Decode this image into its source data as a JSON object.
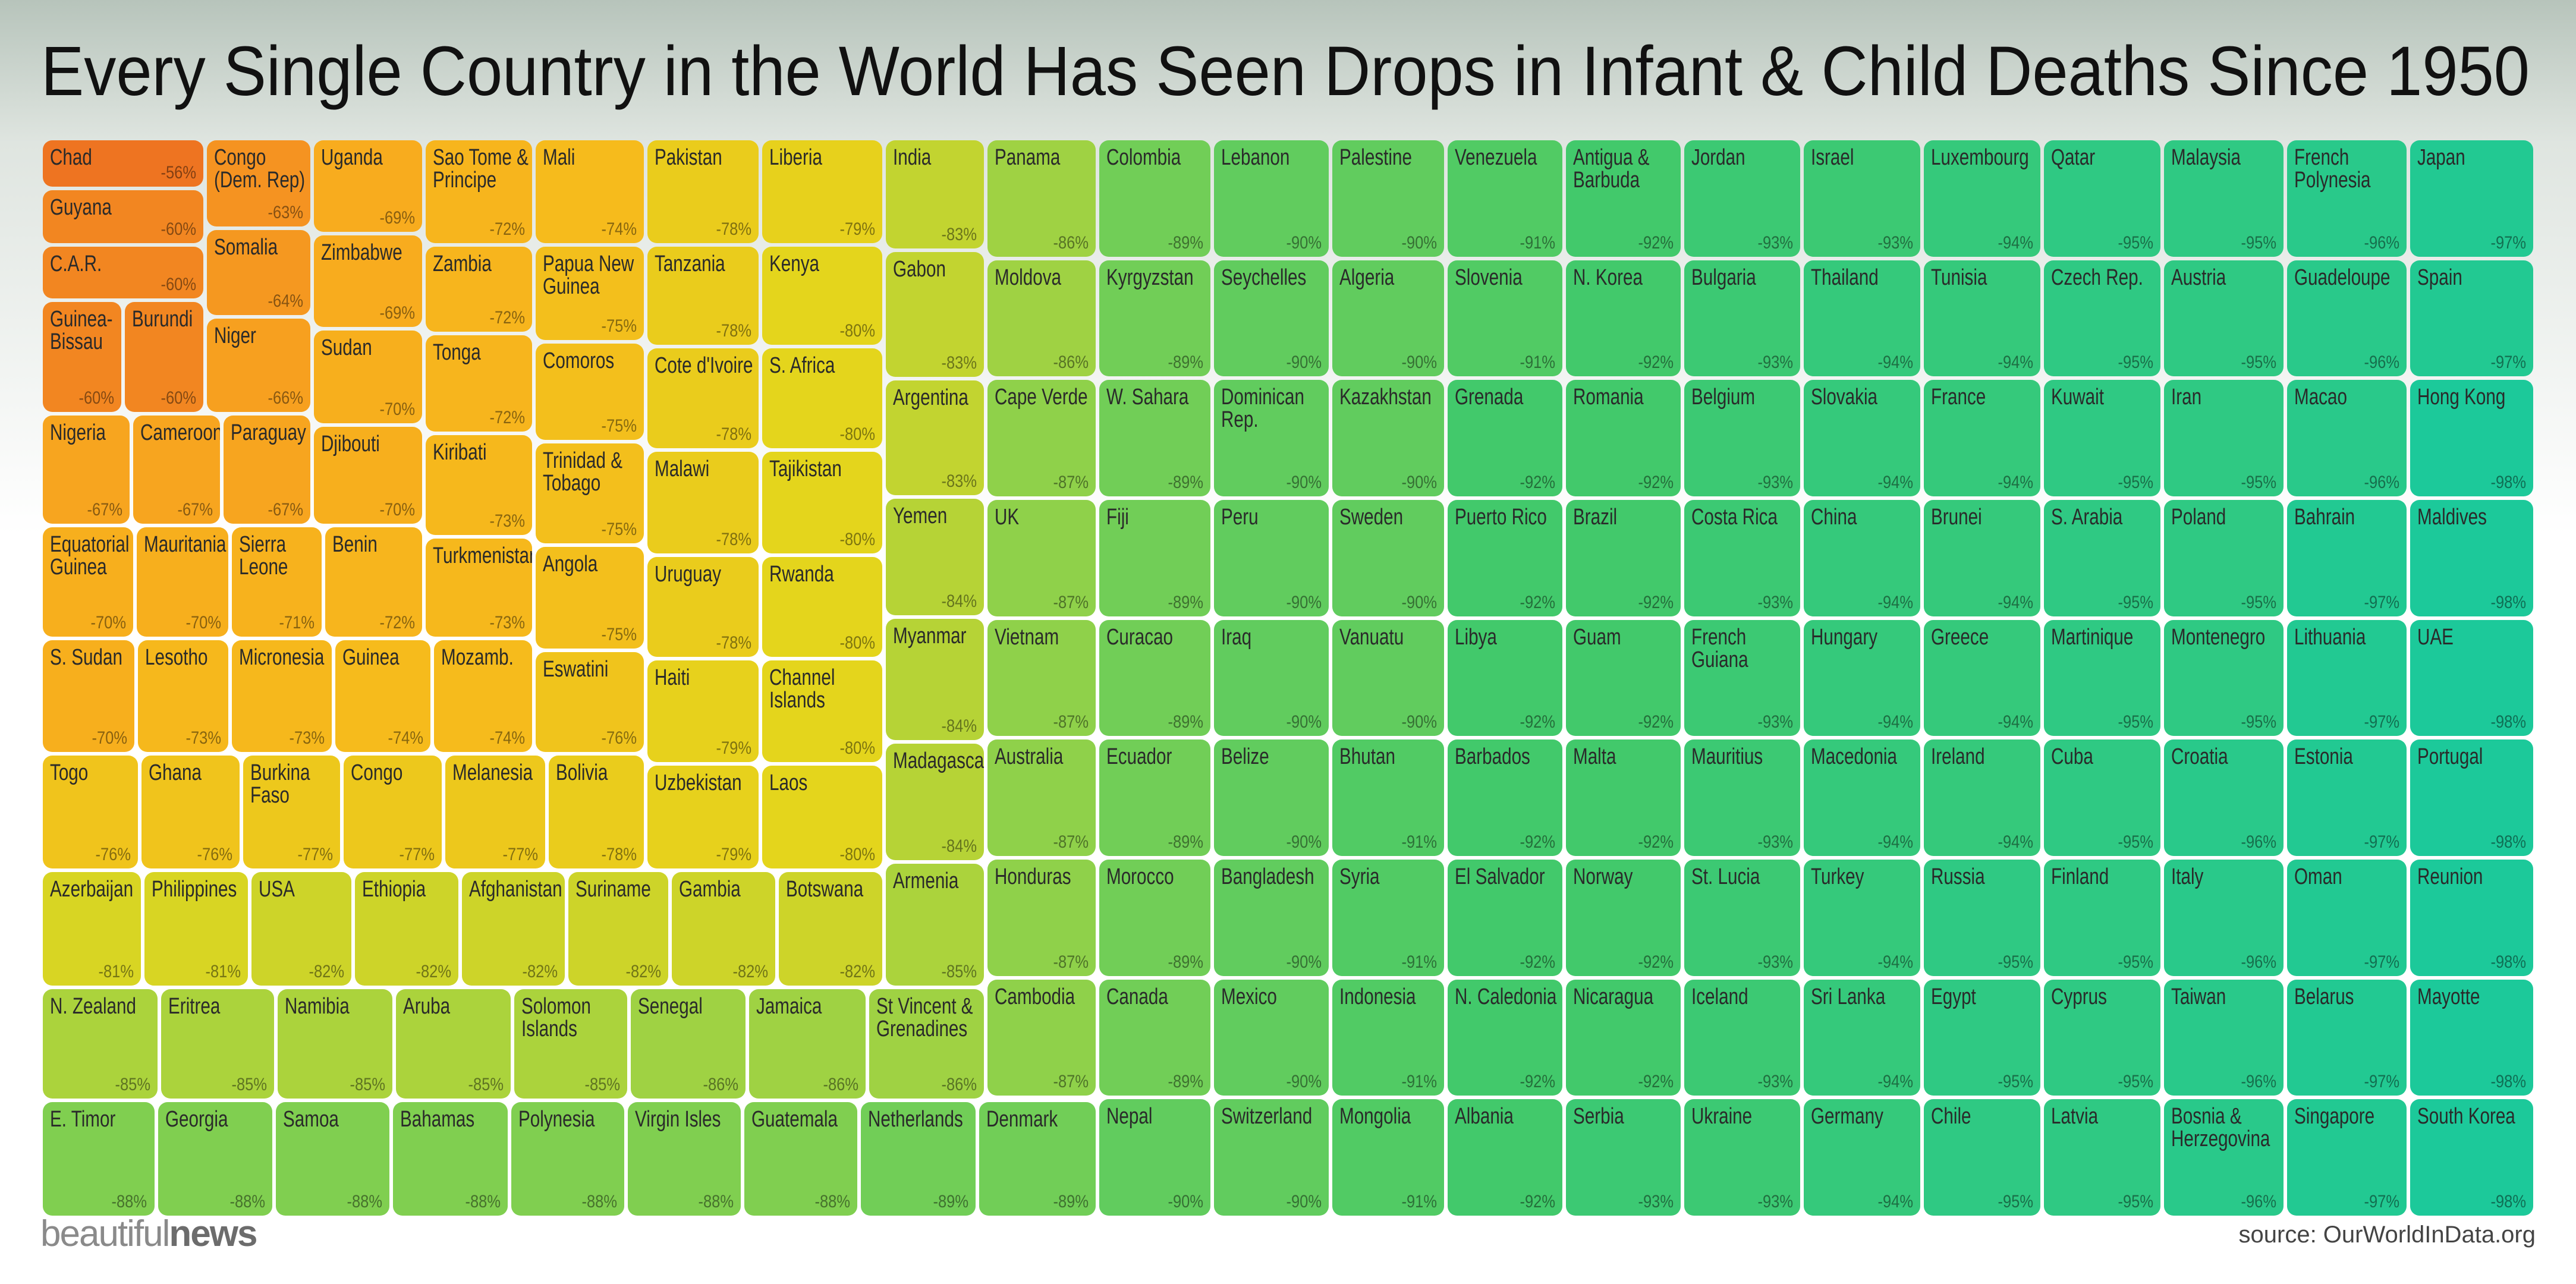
{
  "chart_data": {
    "type": "treemap",
    "title": "Every Single Country in the World Has Seen Drops in Infant & Child Deaths Since 1950",
    "logo": [
      "beautiful",
      "news"
    ],
    "source": "source: OurWorldInData.org",
    "colors": [
      "#ee7421",
      "#f48f21",
      "#f8a91e",
      "#f6bb1c",
      "#e4d51c",
      "#9fd243",
      "#42c96b",
      "#1cc99a"
    ],
    "categories": [
      "Chad",
      "Guyana",
      "C.A.R.",
      "Guinea-Bissau",
      "Burundi",
      "Congo (Dem. Rep)",
      "Somalia",
      "Niger",
      "Uganda",
      "Zimbabwe",
      "Sudan",
      "Djibouti",
      "Nigeria",
      "Cameroon",
      "Paraguay",
      "Sao Tome & Principe",
      "Zambia",
      "Tonga",
      "Kiribati",
      "Turkmenistan",
      "Mali",
      "Papua New Guinea",
      "Comoros",
      "Trinidad & Tobago",
      "Angola",
      "Equatorial Guinea",
      "Mauritania",
      "Sierra Leone",
      "Benin",
      "S. Sudan",
      "Lesotho",
      "Micronesia",
      "Guinea",
      "Mozamb.",
      "Eswatini",
      "Togo",
      "Ghana",
      "Burkina Faso",
      "Congo",
      "Melanesia",
      "Bolivia",
      "Pakistan",
      "Tanzania",
      "Cote d'Ivoire",
      "Malawi",
      "Uruguay",
      "Haiti",
      "Uzbekistan",
      "Liberia",
      "Kenya",
      "S. Africa",
      "Tajikistan",
      "Rwanda",
      "Channel Islands",
      "Laos",
      "India",
      "Gabon",
      "Argentina",
      "Yemen",
      "Myanmar",
      "Madagascar",
      "Armenia",
      "Azerbaijan",
      "Philippines",
      "USA",
      "Ethiopia",
      "Afghanistan",
      "Suriname",
      "Gambia",
      "Botswana",
      "N. Zealand",
      "Eritrea",
      "Namibia",
      "Aruba",
      "Solomon Islands",
      "Senegal",
      "Jamaica",
      "St Vincent & Grenadines",
      "E. Timor",
      "Georgia",
      "Samoa",
      "Bahamas",
      "Polynesia",
      "Virgin Isles",
      "Guatemala",
      "Netherlands",
      "Denmark",
      "Panama",
      "Moldova",
      "Cape Verde",
      "UK",
      "Vietnam",
      "Australia",
      "Honduras",
      "Cambodia",
      "Colombia",
      "Kyrgyzstan",
      "W. Sahara",
      "Fiji",
      "Curacao",
      "Ecuador",
      "Morocco",
      "Canada",
      "Nepal",
      "Lebanon",
      "Seychelles",
      "Dominican Rep.",
      "Peru",
      "Iraq",
      "Belize",
      "Bangladesh",
      "Mexico",
      "Switzerland",
      "Palestine",
      "Algeria",
      "Kazakhstan",
      "Sweden",
      "Vanuatu",
      "Bhutan",
      "Syria",
      "Indonesia",
      "Mongolia",
      "Venezuela",
      "Slovenia",
      "Grenada",
      "Puerto Rico",
      "Libya",
      "Barbados",
      "El Salvador",
      "N. Caledonia",
      "Albania",
      "Antigua & Barbuda",
      "N. Korea",
      "Romania",
      "Brazil",
      "Guam",
      "Malta",
      "Norway",
      "Nicaragua",
      "Serbia",
      "Jordan",
      "Bulgaria",
      "Belgium",
      "Costa Rica",
      "French Guiana",
      "Mauritius",
      "St. Lucia",
      "Iceland",
      "Ukraine",
      "Israel",
      "Thailand",
      "Slovakia",
      "China",
      "Hungary",
      "Macedonia",
      "Turkey",
      "Sri Lanka",
      "Germany",
      "Luxembourg",
      "Tunisia",
      "France",
      "Brunei",
      "Greece",
      "Ireland",
      "Russia",
      "Egypt",
      "Chile",
      "Qatar",
      "Czech Rep.",
      "Kuwait",
      "S. Arabia",
      "Martinique",
      "Cuba",
      "Finland",
      "Cyprus",
      "Latvia",
      "Malaysia",
      "Austria",
      "Iran",
      "Poland",
      "Montenegro",
      "Croatia",
      "Italy",
      "Taiwan",
      "Bosnia & Herzegovina",
      "French Polynesia",
      "Guadeloupe",
      "Macao",
      "Bahrain",
      "Lithuania",
      "Estonia",
      "Oman",
      "Belarus",
      "Singapore",
      "Japan",
      "Spain",
      "Hong Kong",
      "Maldives",
      "UAE",
      "Portugal",
      "Reunion",
      "Mayotte",
      "South Korea"
    ],
    "values": [
      -56,
      -60,
      -60,
      -60,
      -60,
      -63,
      -64,
      -66,
      -69,
      -69,
      -70,
      -70,
      -67,
      -67,
      -67,
      -72,
      -72,
      -72,
      -73,
      -73,
      -74,
      -75,
      -75,
      -75,
      -75,
      -70,
      -70,
      -71,
      -72,
      -70,
      -73,
      -73,
      -74,
      -74,
      -76,
      -76,
      -76,
      -77,
      -77,
      -77,
      -78,
      -78,
      -78,
      -78,
      -78,
      -78,
      -79,
      -79,
      -79,
      -80,
      -80,
      -80,
      -80,
      -80,
      -80,
      -83,
      -83,
      -83,
      -84,
      -84,
      -84,
      -85,
      -81,
      -81,
      -82,
      -82,
      -82,
      -82,
      -82,
      -82,
      -85,
      -85,
      -85,
      -85,
      -85,
      -86,
      -86,
      -86,
      -88,
      -88,
      -88,
      -88,
      -88,
      -88,
      -88,
      -89,
      -89,
      -86,
      -86,
      -87,
      -87,
      -87,
      -87,
      -87,
      -87,
      -89,
      -89,
      -89,
      -89,
      -89,
      -89,
      -89,
      -89,
      -90,
      -90,
      -90,
      -90,
      -90,
      -90,
      -90,
      -90,
      -90,
      -90,
      -90,
      -90,
      -90,
      -90,
      -90,
      -91,
      -91,
      -91,
      -91,
      -91,
      -91,
      -92,
      -92,
      -92,
      -92,
      -92,
      -92,
      -92,
      -92,
      -92,
      -92,
      -92,
      -92,
      -92,
      -92,
      -92,
      -93,
      -93,
      -93,
      -93,
      -93,
      -93,
      -93,
      -93,
      -93,
      -93,
      -93,
      -94,
      -94,
      -94,
      -94,
      -94,
      -94,
      -94,
      -94,
      -94,
      -94,
      -94,
      -94,
      -94,
      -94,
      -95,
      -95,
      -95,
      -95,
      -95,
      -95,
      -95,
      -95,
      -95,
      -95,
      -95,
      -95,
      -95,
      -95,
      -95,
      -95,
      -95,
      -96,
      -96,
      -96,
      -96,
      -96,
      -96,
      -96,
      -97,
      -97,
      -97,
      -97,
      -97,
      -97,
      -97,
      -97,
      -98,
      -98,
      -98,
      -98,
      -98,
      -98,
      -98
    ],
    "value_labels": [
      "-56%",
      "-60%",
      "-60%",
      "-60%",
      "-60%",
      "-63%",
      "-64%",
      "-66%",
      "-69%",
      "-69%",
      "-70%",
      "-70%",
      "-67%",
      "-67%",
      "-67%",
      "-72%",
      "-72%",
      "-72%",
      "-73%",
      "-73%",
      "-74%",
      "-75%",
      "-75%",
      "-75%",
      "-75%",
      "-70%",
      "-70%",
      "-71%",
      "-72%",
      "-70%",
      "-73%",
      "-73%",
      "-74%",
      "-74%",
      "-76%",
      "-76%",
      "-76%",
      "-77%",
      "-77%",
      "-77%",
      "-78%",
      "-78%",
      "-78%",
      "-78%",
      "-78%",
      "-78%",
      "-79%",
      "-79%",
      "-79%",
      "-80%",
      "-80%",
      "-80%",
      "-80%",
      "-80%",
      "-80%",
      "-83%",
      "-83%",
      "-83%",
      "-84%",
      "-84%",
      "-84%",
      "-85%",
      "-81%",
      "-81%",
      "-82%",
      "-82%",
      "-82%",
      "-82%",
      "-82%",
      "-82%",
      "-85%",
      "-85%",
      "-85%",
      "-85%",
      "-85%",
      "-86%",
      "-86%",
      "-86%",
      "-88%",
      "-88%",
      "-88%",
      "-88%",
      "-88%",
      "-88%",
      "-88%",
      "-89%",
      "-89%",
      "-86%",
      "-86%",
      "-87%",
      "-87%",
      "-87%",
      "-87%",
      "-87%",
      "-87%",
      "-89%",
      "-89%",
      "-89%",
      "-89%",
      "-89%",
      "-89%",
      "-89%",
      "-89%",
      "-90%",
      "-90%",
      "-90%",
      "-90%",
      "-90%",
      "-90%",
      "-90%",
      "-90%",
      "-90%",
      "-90%",
      "-90%",
      "-90%",
      "-90%",
      "-90%",
      "-90%",
      "-91%",
      "-91%",
      "-91%",
      "-91%",
      "-91%",
      "-91%",
      "-92%",
      "-92%",
      "-92%",
      "-92%",
      "-92%",
      "-92%",
      "-92%",
      "-92%",
      "-92%",
      "-92%",
      "-92%",
      "-92%",
      "-92%",
      "-92%",
      "-92%",
      "-93%",
      "-93%",
      "-93%",
      "-93%",
      "-93%",
      "-93%",
      "-93%",
      "-93%",
      "-93%",
      "-93%",
      "-93%",
      "-94%",
      "-94%",
      "-94%",
      "-94%",
      "-94%",
      "-94%",
      "-94%",
      "-94%",
      "-94%",
      "-94%",
      "-94%",
      "-94%",
      "-94%",
      "-94%",
      "-95%",
      "-95%",
      "-95%",
      "-95%",
      "-95%",
      "-95%",
      "-95%",
      "-95%",
      "-95%",
      "-95%",
      "-95%",
      "-95%",
      "-95%",
      "-95%",
      "-95%",
      "-95%",
      "-95%",
      "-96%",
      "-96%",
      "-96%",
      "-96%",
      "-96%",
      "-96%",
      "-96%",
      "-97%",
      "-97%",
      "-97%",
      "-97%",
      "-97%",
      "-97%",
      "-97%",
      "-97%",
      "-98%",
      "-98%",
      "-98%",
      "-98%",
      "-98%",
      "-98%",
      "-98%"
    ]
  }
}
